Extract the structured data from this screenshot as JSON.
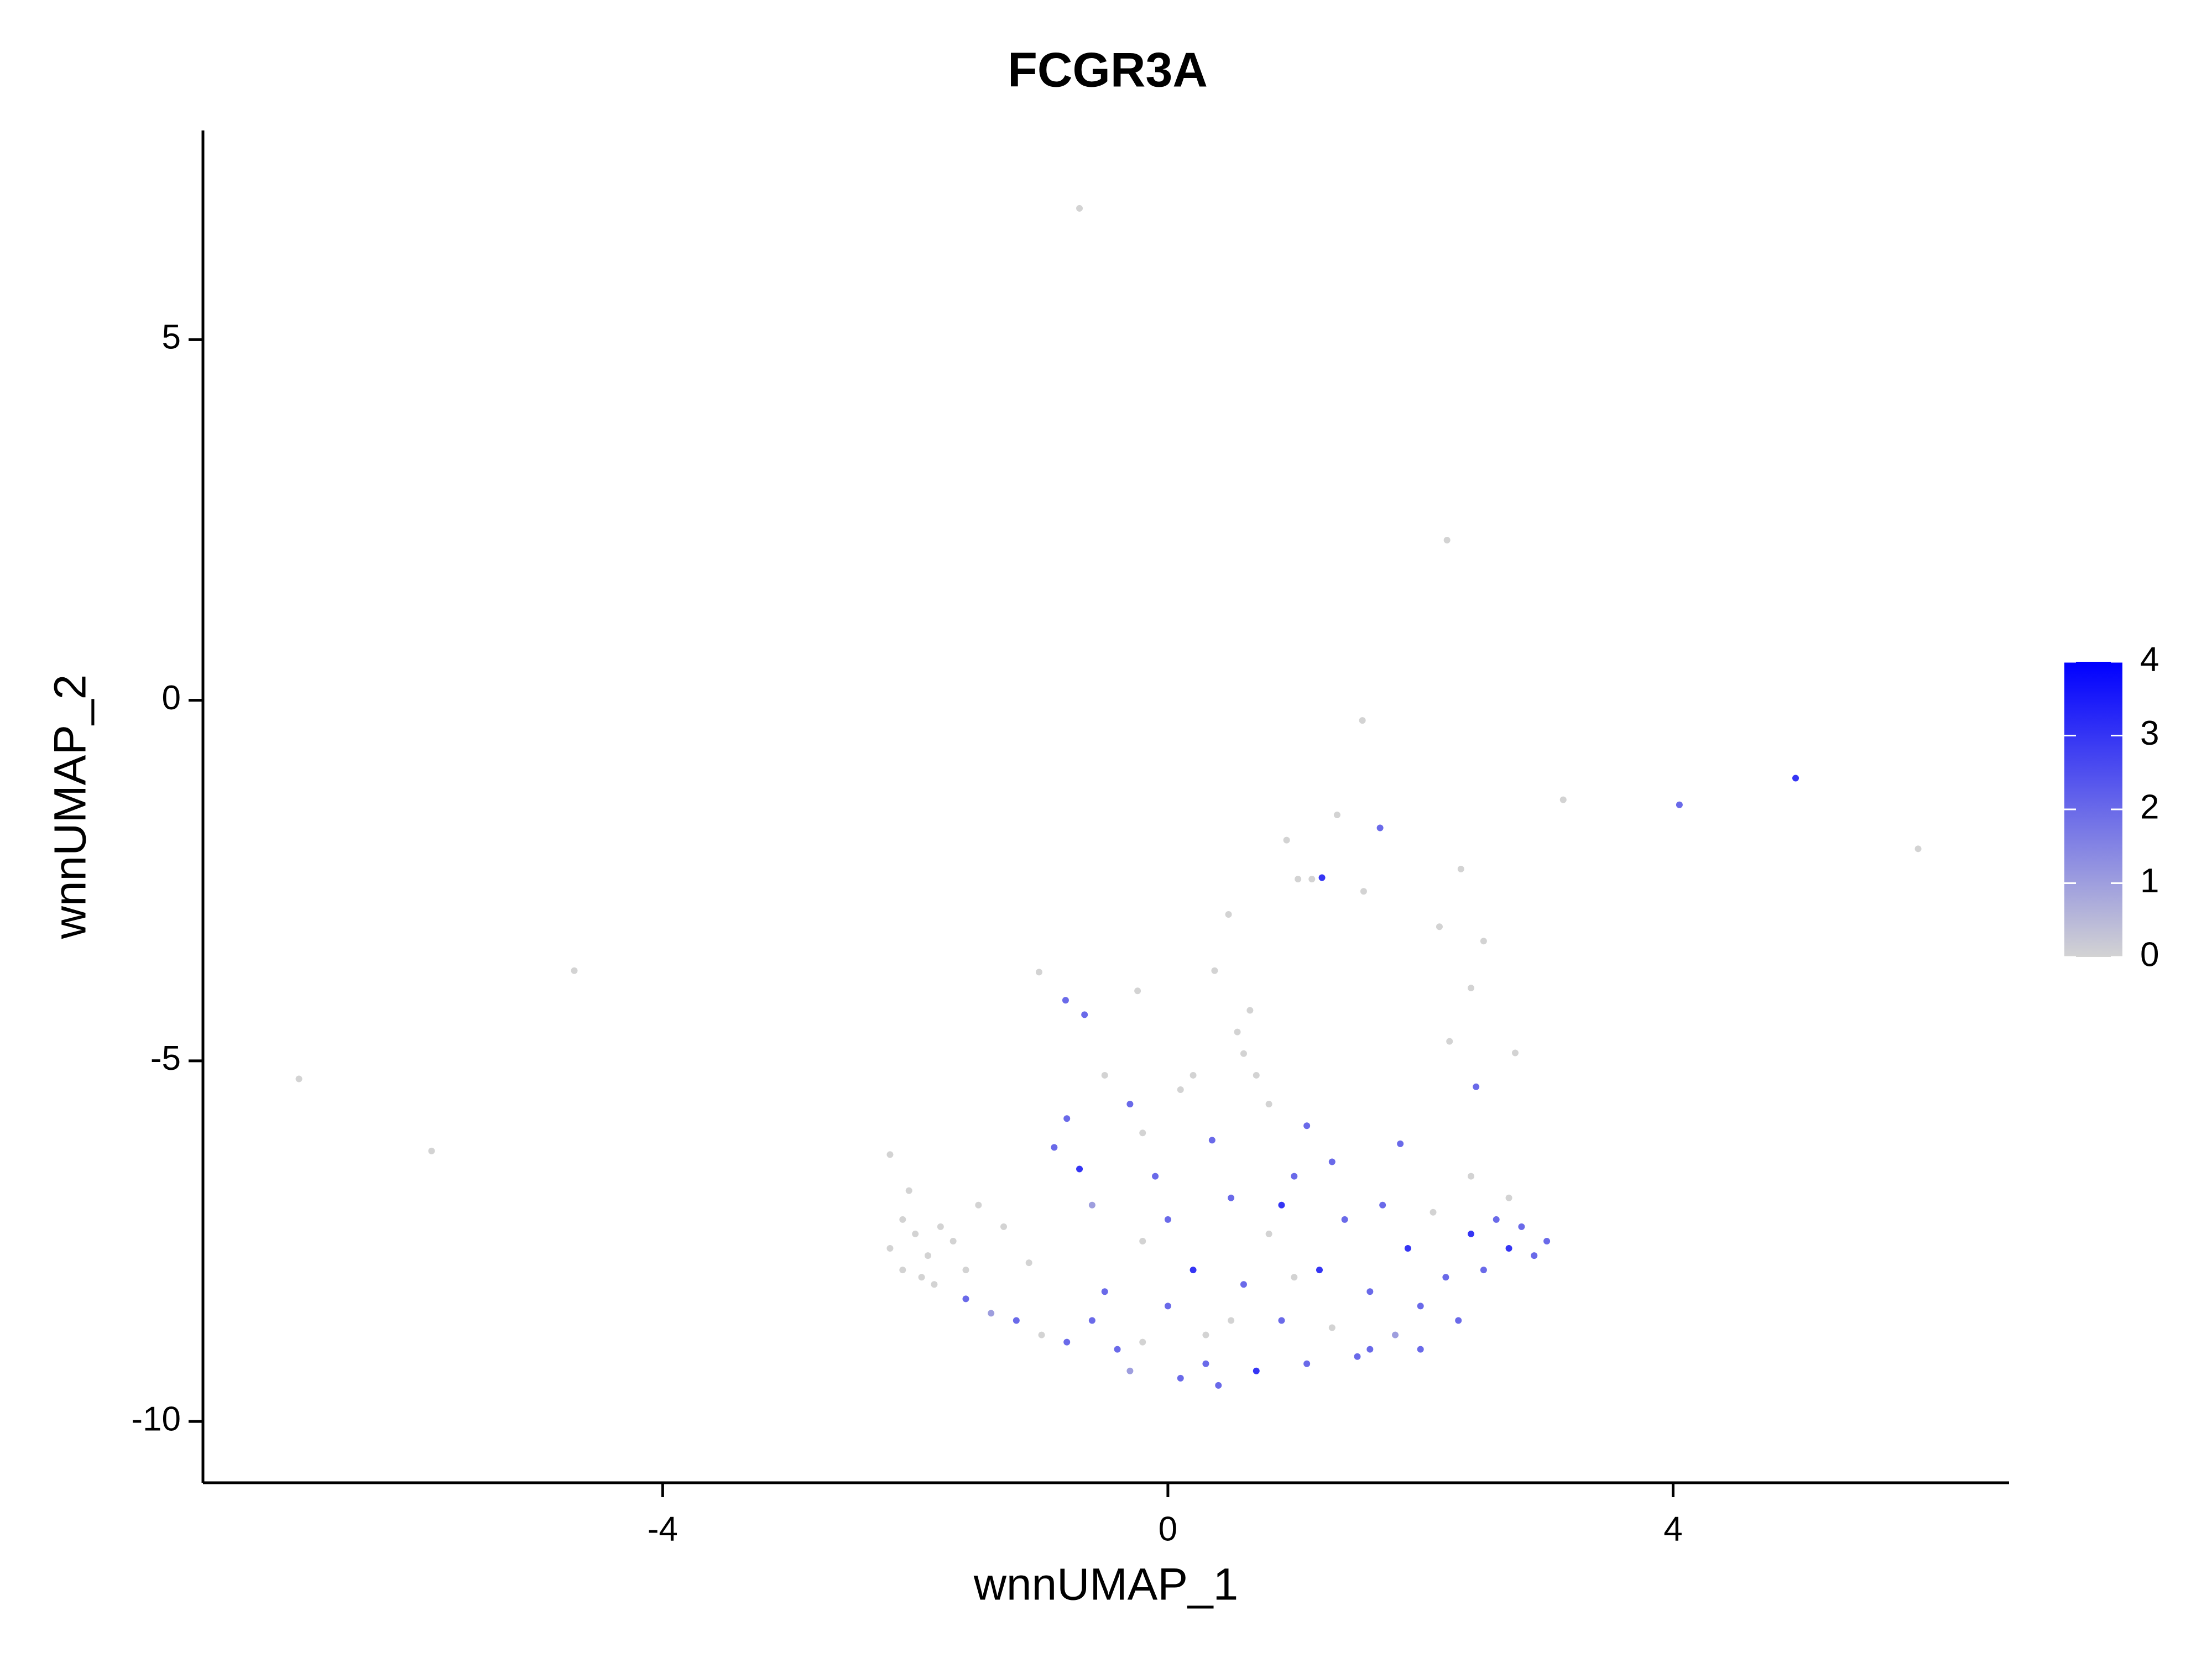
{
  "chart_data": {
    "type": "scatter",
    "title": "FCGR3A",
    "xlabel": "wnnUMAP_1",
    "ylabel": "wnnUMAP_2",
    "xlim": [
      -7.64,
      6.66
    ],
    "ylim": [
      -10.85,
      7.9
    ],
    "xticks": [
      -4,
      0,
      4
    ],
    "yticks": [
      5,
      0,
      -5,
      -10
    ],
    "colorbar": {
      "lim": [
        0,
        4
      ],
      "ticks": [
        0,
        1,
        2,
        3,
        4
      ],
      "low": "#d3d3d3",
      "high": "#0000ff"
    },
    "x": [
      -0.7,
      2.21,
      1.54,
      4.97,
      4.05,
      3.13,
      5.94,
      -6.88,
      -5.83,
      -4.7,
      1.68,
      1.34,
      1.22,
      0.94,
      2.32,
      2.5,
      2.15,
      0.48,
      1.55,
      -1.02,
      -0.24,
      -0.81,
      -0.66,
      2.4,
      2.23,
      2.44,
      2.75,
      1.84,
      0.37,
      1.03,
      1.14,
      -2.2,
      -2.1,
      -2.0,
      -1.9,
      -1.8,
      -2.1,
      -1.95,
      -1.7,
      -2.2,
      -2.05,
      -1.85,
      -1.6,
      -1.6,
      -1.4,
      -1.2,
      -1.0,
      -0.8,
      -1.3,
      -1.1,
      -0.9,
      -0.7,
      -0.8,
      -0.6,
      -0.5,
      -0.4,
      -0.3,
      -0.2,
      -0.1,
      0.0,
      0.1,
      0.2,
      0.3,
      0.4,
      0.5,
      0.6,
      0.7,
      0.8,
      0.9,
      1.0,
      1.1,
      1.2,
      1.3,
      1.4,
      1.5,
      1.6,
      1.7,
      1.8,
      1.9,
      2.0,
      2.1,
      2.2,
      2.3,
      2.4,
      2.5,
      2.6,
      2.7,
      2.8,
      2.9,
      3.0,
      2.7,
      2.4,
      0.55,
      0.6,
      0.7,
      0.65,
      0.8,
      0.1,
      0.2,
      -0.5,
      -0.3,
      1.1,
      0.35,
      -0.2,
      0.5,
      1.0,
      1.6,
      -0.6,
      0.0,
      0.9,
      -1.5,
      -0.2,
      1.3,
      2.0,
      0.3
    ],
    "y": [
      6.82,
      2.22,
      -0.28,
      -1.08,
      -1.45,
      -1.38,
      -2.06,
      -5.25,
      -6.25,
      -3.75,
      -1.77,
      -1.59,
      -2.46,
      -1.94,
      -2.34,
      -3.34,
      -3.14,
      -2.97,
      -2.65,
      -3.77,
      -4.03,
      -4.16,
      -4.36,
      -3.99,
      -4.73,
      -5.36,
      -4.89,
      -6.15,
      -3.75,
      -2.48,
      -2.48,
      -7.6,
      -7.9,
      -7.4,
      -7.7,
      -7.3,
      -7.2,
      -8.0,
      -7.5,
      -6.3,
      -6.8,
      -8.1,
      -7.9,
      -8.3,
      -8.5,
      -8.6,
      -8.8,
      -8.9,
      -7.3,
      -7.8,
      -6.2,
      -6.5,
      -5.8,
      -7.0,
      -8.2,
      -9.0,
      -9.3,
      -7.5,
      -6.6,
      -8.4,
      -9.4,
      -7.9,
      -8.8,
      -9.5,
      -6.9,
      -8.1,
      -9.3,
      -7.4,
      -8.6,
      -6.6,
      -9.2,
      -7.9,
      -8.7,
      -7.2,
      -9.1,
      -8.2,
      -7.0,
      -8.8,
      -7.6,
      -8.4,
      -7.1,
      -8.0,
      -8.6,
      -7.4,
      -7.9,
      -7.2,
      -7.6,
      -7.3,
      -7.7,
      -7.5,
      -6.9,
      -6.6,
      -4.6,
      -4.9,
      -5.2,
      -4.3,
      -5.6,
      -5.4,
      -5.2,
      -5.2,
      -5.6,
      -5.9,
      -6.1,
      -8.9,
      -8.6,
      -8.0,
      -9.0,
      -8.6,
      -7.2,
      -7.0,
      -7.0,
      -6.0,
      -6.4,
      -9.0,
      -9.2
    ],
    "values": [
      0,
      0,
      0,
      3,
      2,
      0,
      0,
      0,
      0,
      0,
      2,
      0,
      3,
      0,
      0,
      0,
      0,
      0,
      0,
      0,
      0,
      2,
      2,
      0,
      0,
      2,
      0,
      2,
      0,
      0,
      0,
      0,
      0,
      0,
      0,
      0,
      0,
      0,
      0,
      0,
      0,
      0,
      0,
      2,
      1,
      2,
      0,
      2,
      0,
      0,
      2,
      3,
      2,
      1,
      2,
      2,
      1,
      0,
      2,
      2,
      2,
      3,
      0,
      2,
      2,
      2,
      3,
      0,
      2,
      2,
      2,
      3,
      0,
      2,
      2,
      2,
      2,
      1,
      3,
      2,
      0,
      2,
      2,
      3,
      2,
      2,
      3,
      2,
      2,
      2,
      0,
      0,
      0,
      0,
      0,
      0,
      0,
      0,
      0,
      0,
      2,
      2,
      2,
      0,
      0,
      0,
      2,
      2,
      2,
      3,
      0,
      0,
      2,
      2,
      2
    ]
  }
}
